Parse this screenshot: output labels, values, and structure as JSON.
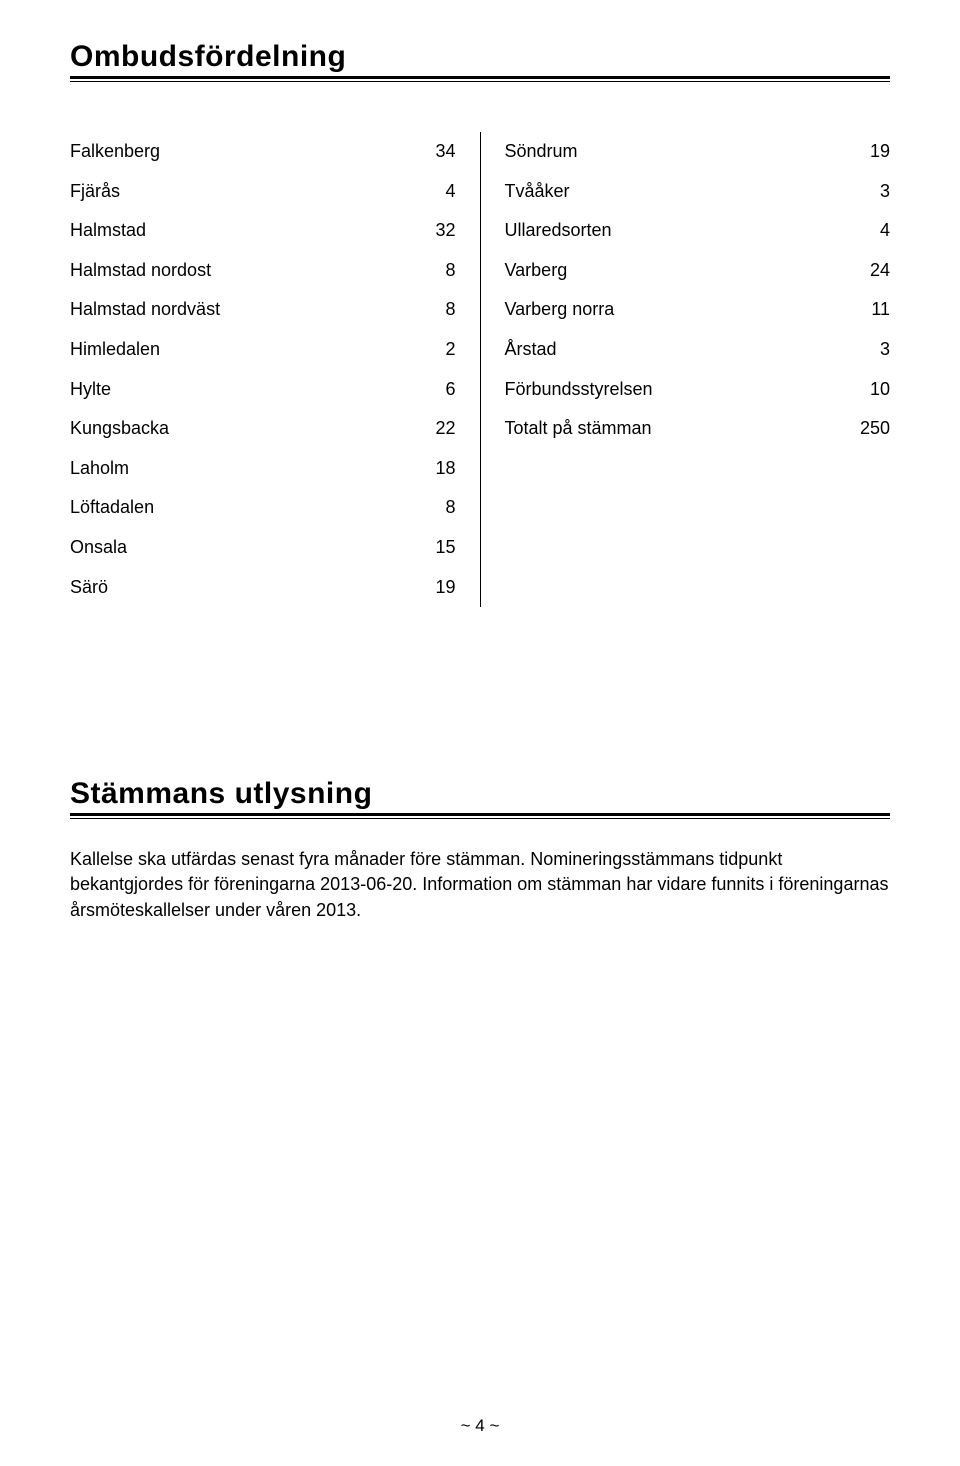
{
  "section1": {
    "title": "Ombudsfördelning",
    "left_rows": [
      {
        "label": "Falkenberg",
        "value": "34"
      },
      {
        "label": "Fjärås",
        "value": "4"
      },
      {
        "label": "Halmstad",
        "value": "32"
      },
      {
        "label": "Halmstad nordost",
        "value": "8"
      },
      {
        "label": "Halmstad nordväst",
        "value": "8"
      },
      {
        "label": "Himledalen",
        "value": "2"
      },
      {
        "label": "Hylte",
        "value": "6"
      },
      {
        "label": "Kungsbacka",
        "value": "22"
      },
      {
        "label": "Laholm",
        "value": "18"
      },
      {
        "label": "Löftadalen",
        "value": "8"
      },
      {
        "label": "Onsala",
        "value": "15"
      },
      {
        "label": "Särö",
        "value": "19"
      }
    ],
    "right_rows": [
      {
        "label": "Söndrum",
        "value": "19"
      },
      {
        "label": "Tvååker",
        "value": "3"
      },
      {
        "label": "Ullaredsorten",
        "value": "4"
      },
      {
        "label": "Varberg",
        "value": "24"
      },
      {
        "label": "Varberg norra",
        "value": "11"
      },
      {
        "label": "Årstad",
        "value": "3"
      },
      {
        "label": "Förbundsstyrelsen",
        "value": "10"
      },
      {
        "label": "Totalt på stämman",
        "value": "250"
      }
    ]
  },
  "section2": {
    "title": "Stämmans utlysning",
    "body": "Kallelse ska utfärdas senast fyra månader före stämman. Nomineringsstämmans tidpunkt bekantgjordes för föreningarna 2013-06-20. Information om stämman har vidare funnits i föreningarnas årsmöteskallelser under våren 2013."
  },
  "footer": "~ 4 ~"
}
